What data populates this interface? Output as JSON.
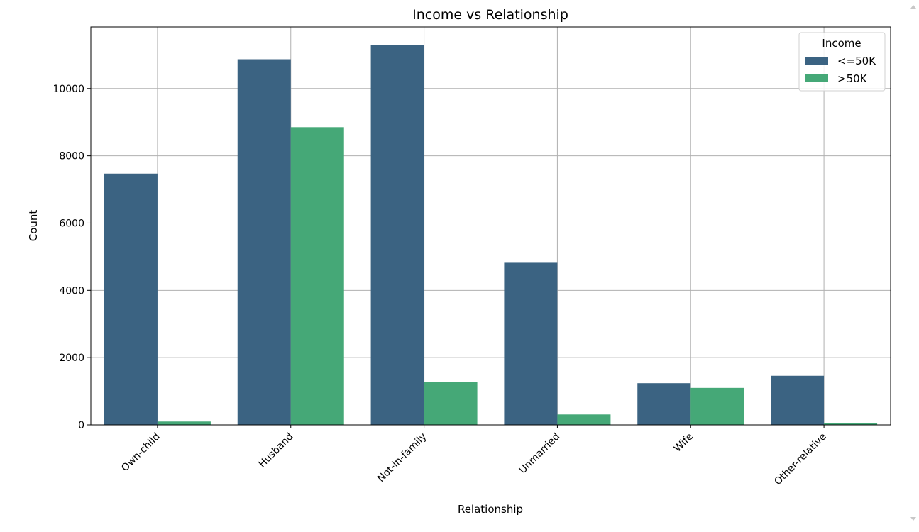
{
  "chart_data": {
    "type": "bar",
    "title": "Income vs Relationship",
    "xlabel": "Relationship",
    "ylabel": "Count",
    "categories": [
      "Own-child",
      "Husband",
      "Not-in-family",
      "Unmarried",
      "Wife",
      "Other-relative"
    ],
    "series": [
      {
        "name": "<=50K",
        "color": "#3b6382",
        "values": [
          7470,
          10870,
          11300,
          4820,
          1240,
          1460
        ]
      },
      {
        "name": ">50K",
        "color": "#45a877",
        "values": [
          100,
          8850,
          1280,
          310,
          1100,
          50
        ]
      }
    ],
    "ylim": [
      0,
      11830
    ],
    "yticks": [
      0,
      2000,
      4000,
      6000,
      8000,
      10000
    ],
    "grid": true,
    "legend": {
      "title": "Income",
      "placement": "top-right"
    }
  }
}
